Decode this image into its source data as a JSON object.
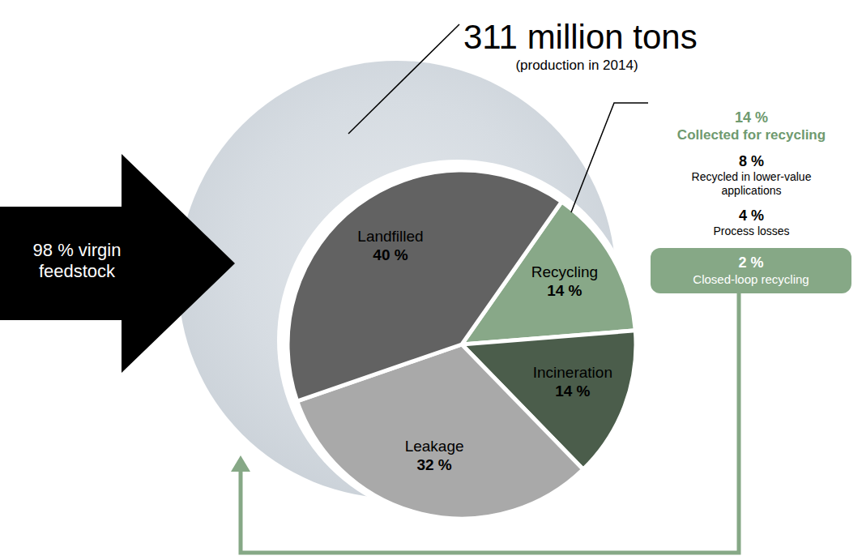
{
  "chart_data": {
    "type": "pie",
    "title": "311 million tons",
    "subtitle": "(production in 2014)",
    "categories": [
      "Recycling",
      "Incineration",
      "Leakage",
      "Landfilled"
    ],
    "values": [
      14,
      14,
      32,
      40
    ],
    "value_labels": [
      "14 %",
      "14 %",
      "32 %",
      "40 %"
    ],
    "colors": [
      "#88a888",
      "#4b5d4b",
      "#a9a9a9",
      "#626262"
    ],
    "data_labels": true,
    "annotations": {
      "feedstock": "98 % virgin feedstock",
      "recycling": {
        "title": "14 %",
        "subtitle": "Collected for recycling",
        "items": [
          {
            "label": "8 %",
            "text": "Recycled in lower-value applications"
          },
          {
            "label": "4 %",
            "text": "Process losses"
          },
          {
            "label": "2 %",
            "text": "Closed-loop recycling"
          }
        ]
      }
    }
  }
}
